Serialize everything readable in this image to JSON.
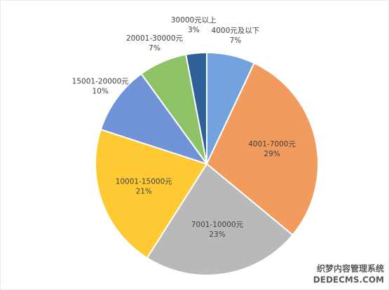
{
  "chart_data": {
    "type": "pie",
    "categories": [
      "4000元及以下",
      "4001-7000元",
      "7001-10000元",
      "10001-15000元",
      "15001-20000元",
      "20001-30000元",
      "30000元以上"
    ],
    "values": [
      7,
      29,
      23,
      21,
      10,
      7,
      3
    ],
    "value_labels": [
      "7%",
      "29%",
      "23%",
      "21%",
      "10%",
      "7%",
      "3%"
    ],
    "colors": [
      "#72a3de",
      "#f19b5f",
      "#b9b9b9",
      "#ffc934",
      "#7093d8",
      "#8ec266",
      "#2f6098"
    ]
  },
  "watermark": {
    "line1": "织梦内容管理系统",
    "line2": "DEDECMS.COM"
  }
}
